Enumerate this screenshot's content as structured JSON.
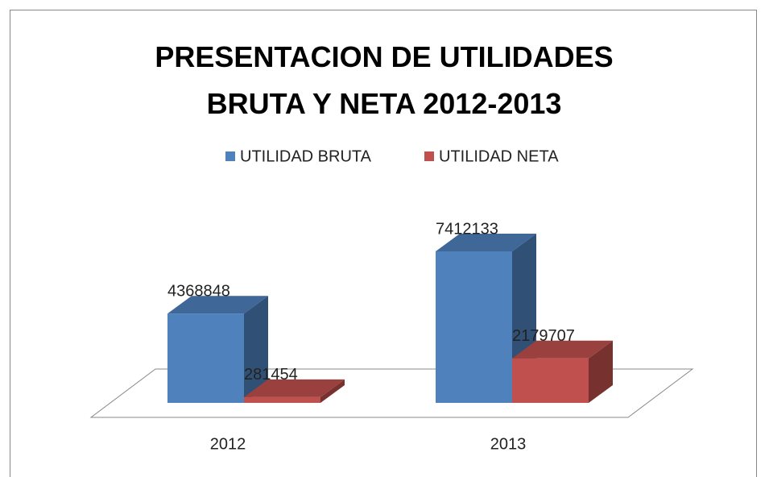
{
  "chart_data": {
    "type": "bar3d",
    "title": "PRESENTACION DE UTILIDADES BRUTA Y NETA 2012-2013",
    "categories": [
      "2012",
      "2013"
    ],
    "series": [
      {
        "name": "UTILIDAD BRUTA",
        "color": "#4f81bd",
        "values": [
          4368848,
          7412133
        ]
      },
      {
        "name": "UTILIDAD NETA",
        "color": "#c0504d",
        "values": [
          281454,
          2179707
        ]
      }
    ],
    "legend": "top"
  }
}
